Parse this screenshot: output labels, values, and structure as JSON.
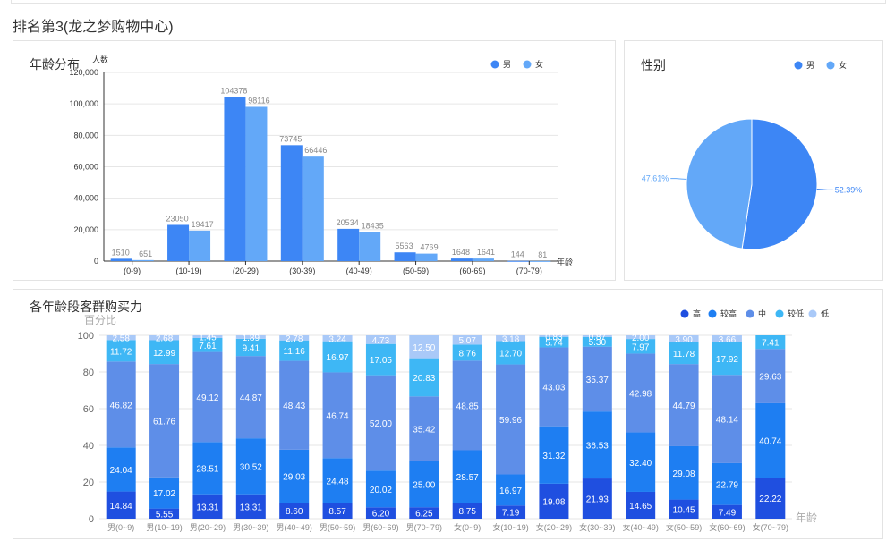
{
  "page": {
    "title": "排名第3(龙之梦购物中心)"
  },
  "colors": {
    "male": "#3d86f5",
    "female": "#63a8f8",
    "purchase": [
      "#1f4fe0",
      "#1e7ef2",
      "#5e8ee8",
      "#3eb7f5",
      "#a9c9f8"
    ]
  },
  "chart_data": [
    {
      "type": "bar",
      "title": "年龄分布",
      "ylabel": "人数",
      "xlabel": "年龄",
      "categories": [
        "(0-9)",
        "(10-19)",
        "(20-29)",
        "(30-39)",
        "(40-49)",
        "(50-59)",
        "(60-69)",
        "(70-79)"
      ],
      "ylim": [
        0,
        120000
      ],
      "yticks": [
        "0",
        "20,000",
        "40,000",
        "60,000",
        "80,000",
        "100,000",
        "120,000"
      ],
      "legend_position": "top-right",
      "grid": true,
      "series": [
        {
          "name": "男",
          "values": [
            1510,
            23050,
            104378,
            73745,
            20534,
            5563,
            1648,
            144
          ]
        },
        {
          "name": "女",
          "values": [
            651,
            19417,
            98116,
            66446,
            18435,
            4769,
            1641,
            81
          ]
        }
      ]
    },
    {
      "type": "pie",
      "title": "性别",
      "legend_position": "top-right",
      "labels": [
        "男",
        "女"
      ],
      "values": [
        52.39,
        47.61
      ],
      "value_labels": [
        "52.39%",
        "47.61%"
      ]
    },
    {
      "type": "bar",
      "stacked": true,
      "title": "各年龄段客群购买力",
      "ylabel": "百分比",
      "xlabel": "年龄",
      "ylim": [
        0,
        100
      ],
      "yticks": [
        "0",
        "20",
        "40",
        "60",
        "80",
        "100"
      ],
      "legend_position": "top-right",
      "grid": true,
      "categories": [
        "男(0~9)",
        "男(10~19)",
        "男(20~29)",
        "男(30~39)",
        "男(40~49)",
        "男(50~59)",
        "男(60~69)",
        "男(70~79)",
        "女(0~9)",
        "女(10~19)",
        "女(20~29)",
        "女(30~39)",
        "女(40~49)",
        "女(50~59)",
        "女(60~69)",
        "女(70~79)"
      ],
      "series": [
        {
          "name": "高",
          "values": [
            14.84,
            5.55,
            13.31,
            13.31,
            8.6,
            8.57,
            6.2,
            6.25,
            8.75,
            7.19,
            19.08,
            21.93,
            14.65,
            10.45,
            7.49,
            22.22
          ]
        },
        {
          "name": "较高",
          "values": [
            24.04,
            17.02,
            28.51,
            30.52,
            29.03,
            24.48,
            20.02,
            25.0,
            28.57,
            16.97,
            31.32,
            36.53,
            32.4,
            29.08,
            22.79,
            40.74
          ]
        },
        {
          "name": "中",
          "values": [
            46.82,
            61.76,
            49.12,
            44.87,
            48.43,
            46.74,
            52.0,
            35.42,
            48.85,
            59.96,
            43.03,
            35.37,
            42.98,
            44.79,
            48.14,
            29.63
          ]
        },
        {
          "name": "较低",
          "values": [
            11.72,
            12.99,
            7.61,
            9.41,
            11.16,
            16.97,
            17.05,
            20.83,
            8.76,
            12.7,
            5.74,
            5.3,
            7.97,
            11.78,
            17.92,
            7.41
          ]
        },
        {
          "name": "低",
          "values": [
            2.58,
            2.68,
            1.45,
            1.89,
            2.78,
            3.24,
            4.73,
            12.5,
            5.07,
            3.18,
            0.83,
            0.87,
            2.0,
            3.9,
            3.66,
            0.0
          ]
        }
      ]
    }
  ]
}
